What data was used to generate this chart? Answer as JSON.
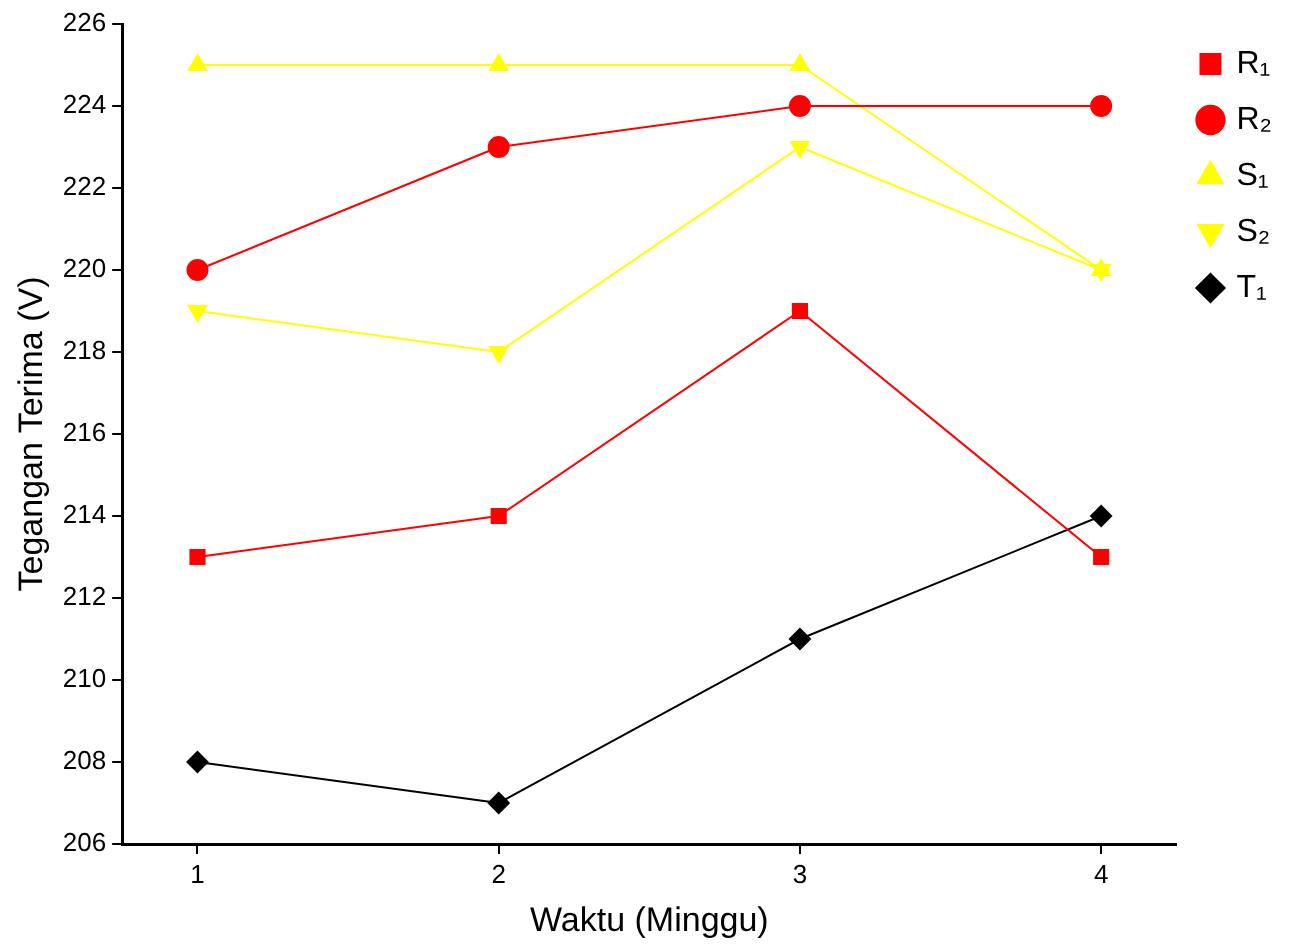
{
  "chart_data": {
    "type": "line",
    "xlabel": "Waktu (Minggu)",
    "ylabel": "Tegangan Terima (V)",
    "x": [
      1,
      2,
      3,
      4
    ],
    "xlim": [
      0.75,
      4.25
    ],
    "xticks": [
      1,
      2,
      3,
      4
    ],
    "ylim": [
      206,
      226
    ],
    "yticks": [
      206,
      208,
      210,
      212,
      214,
      216,
      218,
      220,
      222,
      224,
      226
    ],
    "grid": false,
    "legend": "top right",
    "line_style": "solid",
    "series": [
      {
        "name": "R₁",
        "color": "#ff0000",
        "marker": "square",
        "values": [
          213,
          214,
          219,
          213
        ]
      },
      {
        "name": "R₂",
        "color": "#ff0000",
        "marker": "circle",
        "values": [
          220,
          223,
          224,
          224
        ]
      },
      {
        "name": "S₁",
        "color": "#ffff00",
        "marker": "triangle",
        "values": [
          225,
          225,
          225,
          220
        ]
      },
      {
        "name": "S₂",
        "color": "#ffff00",
        "marker": "triangle-down",
        "values": [
          219,
          218,
          223,
          220
        ]
      },
      {
        "name": "T₁",
        "color": "#000000",
        "marker": "diamond",
        "values": [
          208,
          207,
          211,
          214
        ]
      }
    ]
  }
}
